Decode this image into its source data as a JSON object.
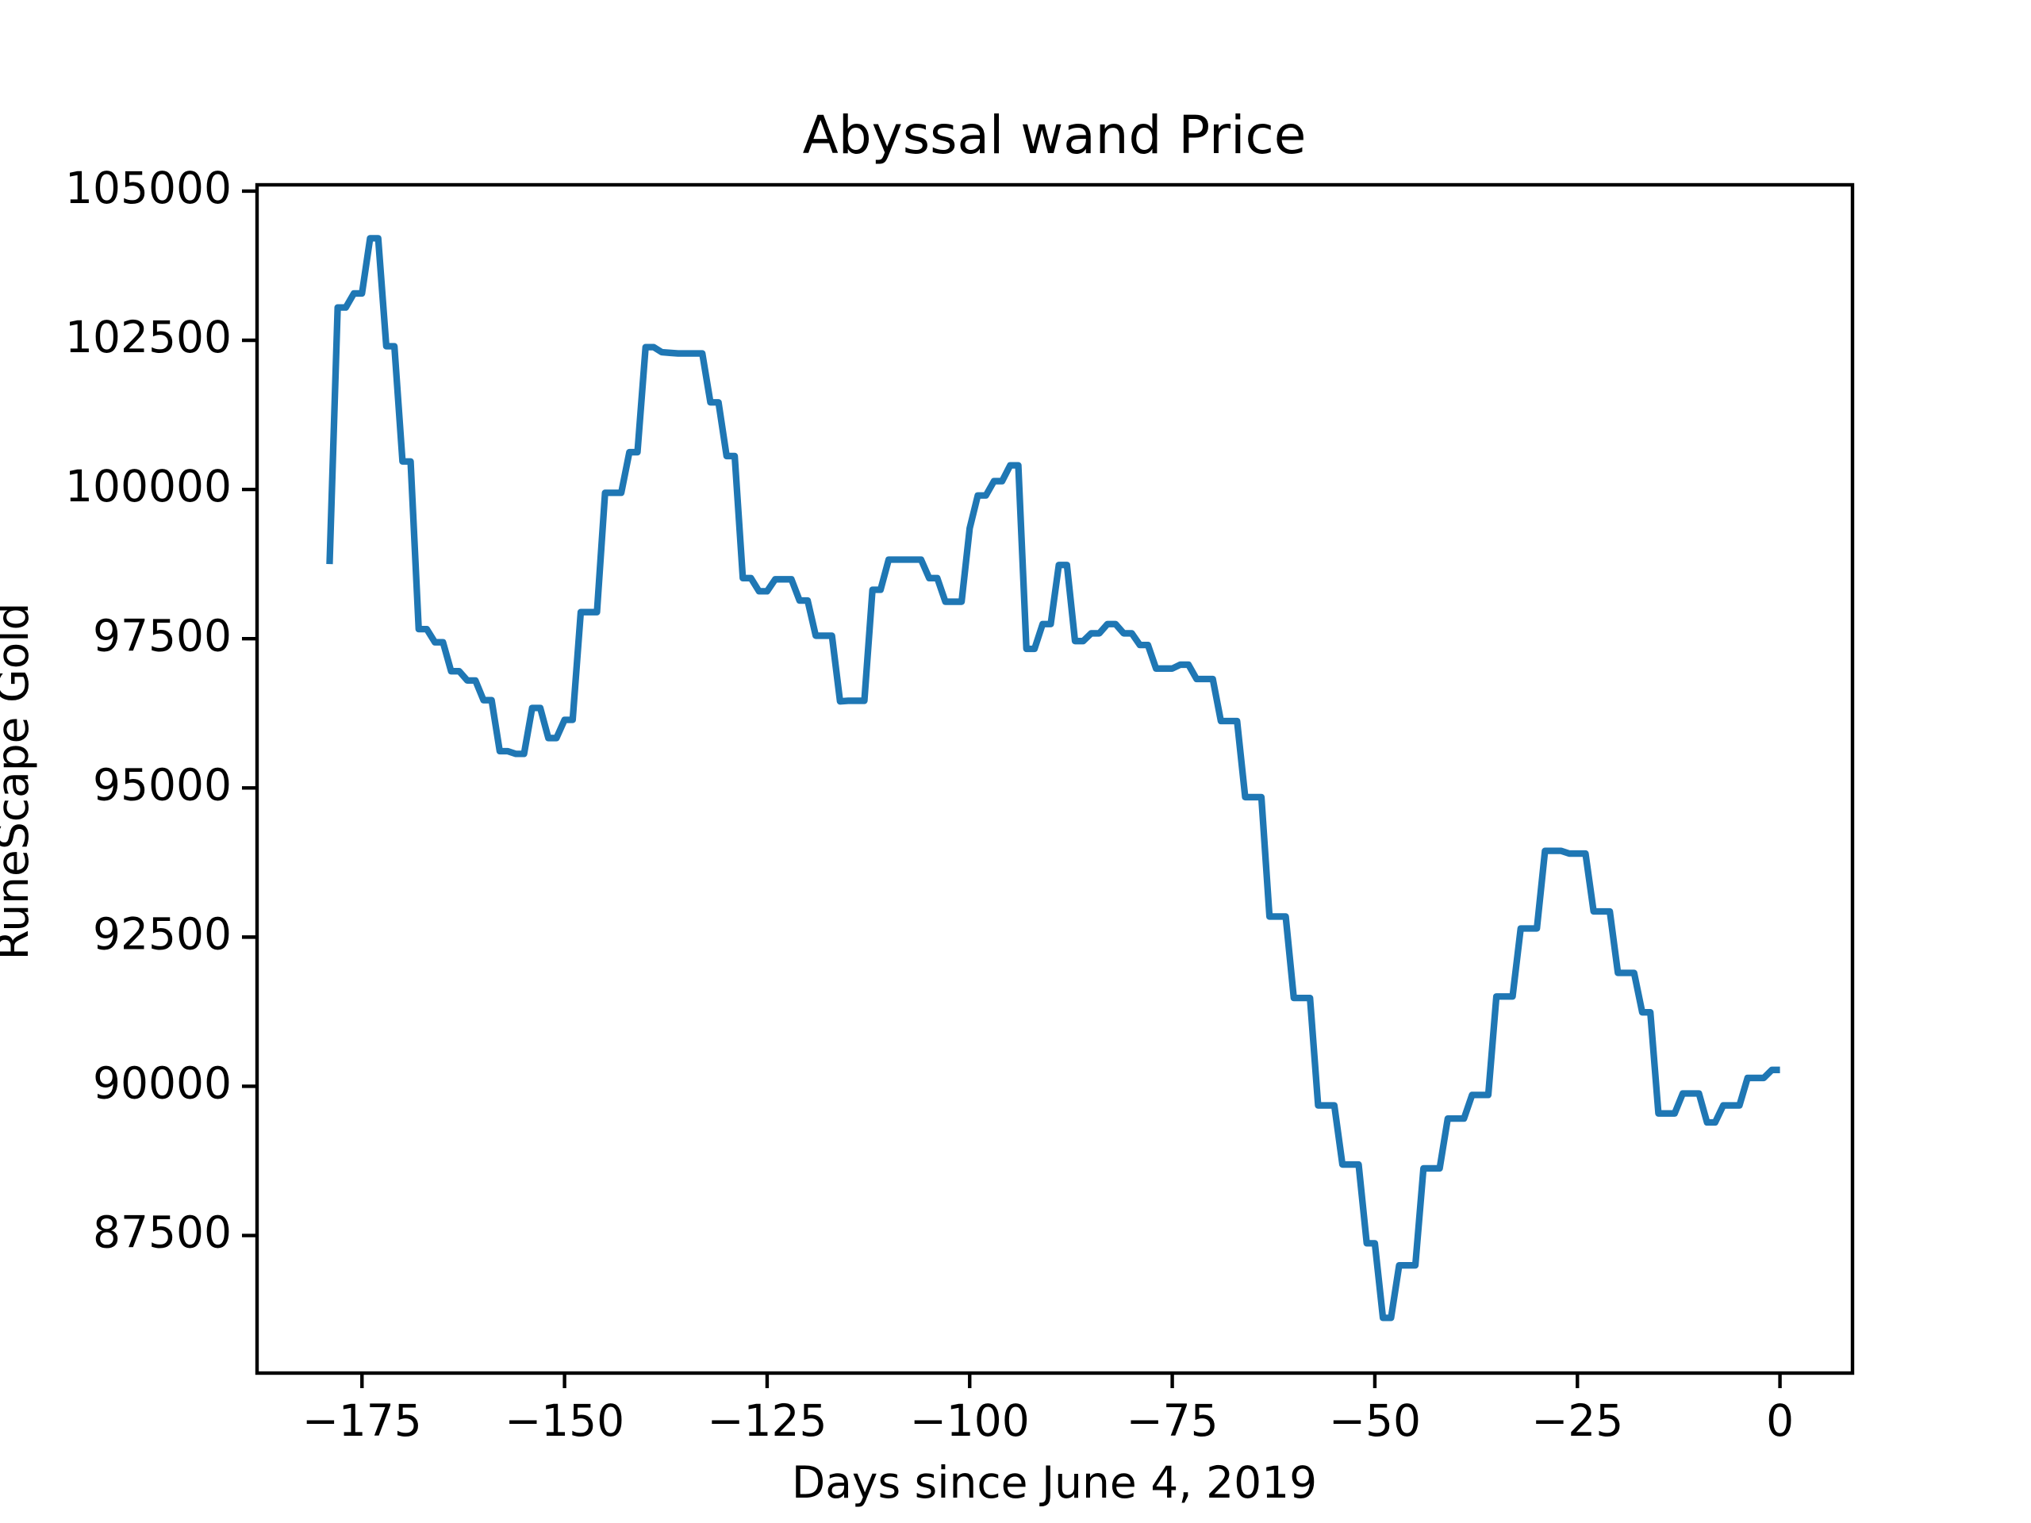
{
  "chart_data": {
    "type": "line",
    "title": "Abyssal wand Price",
    "x_label": "Days since June 4, 2019",
    "y_label": "RuneScape Gold",
    "grid": false,
    "xlim": [
      -187.95,
      8.95
    ],
    "ylim": [
      85195,
      105105
    ],
    "xticks": [
      {
        "value": -175,
        "label": "−175"
      },
      {
        "value": -150,
        "label": "−150"
      },
      {
        "value": -125,
        "label": "−125"
      },
      {
        "value": -100,
        "label": "−100"
      },
      {
        "value": -75,
        "label": "−75"
      },
      {
        "value": -50,
        "label": "−50"
      },
      {
        "value": -25,
        "label": "−25"
      },
      0
    ],
    "yticks": [
      87500,
      90000,
      92500,
      95000,
      97500,
      100000,
      102500,
      105000
    ],
    "x": [
      -179,
      -178,
      -177,
      -176,
      -175,
      -174,
      -173,
      -172,
      -171,
      -170,
      -169,
      -168,
      -167,
      -166,
      -165,
      -164,
      -163,
      -162,
      -161,
      -160,
      -159,
      -158,
      -157,
      -156,
      -155,
      -154,
      -153,
      -152,
      -151,
      -150,
      -149,
      -148,
      -147,
      -146,
      -145,
      -144,
      -143,
      -142,
      -141,
      -140,
      -139,
      -138,
      -137,
      -136,
      -135,
      -134,
      -133,
      -132,
      -131,
      -130,
      -129,
      -128,
      -127,
      -126,
      -125,
      -124,
      -123,
      -122,
      -121,
      -120,
      -119,
      -118,
      -117,
      -116,
      -115,
      -114,
      -113,
      -112,
      -111,
      -110,
      -109,
      -108,
      -107,
      -106,
      -105,
      -104,
      -103,
      -102,
      -101,
      -100,
      -99,
      -98,
      -97,
      -96,
      -95,
      -94,
      -93,
      -92,
      -91,
      -90,
      -89,
      -88,
      -87,
      -86,
      -85,
      -84,
      -83,
      -82,
      -81,
      -80,
      -79,
      -78,
      -77,
      -76,
      -75,
      -74,
      -73,
      -72,
      -71,
      -70,
      -69,
      -68,
      -67,
      -66,
      -65,
      -64,
      -63,
      -62,
      -61,
      -60,
      -59,
      -58,
      -57,
      -56,
      -55,
      -54,
      -53,
      -52,
      -51,
      -50,
      -49,
      -48,
      -47,
      -46,
      -45,
      -44,
      -43,
      -42,
      -41,
      -40,
      -39,
      -38,
      -37,
      -36,
      -35,
      -34,
      -33,
      -32,
      -31,
      -30,
      -29,
      -28,
      -27,
      -26,
      -25,
      -24,
      -23,
      -22,
      -21,
      -20,
      -19,
      -18,
      -17,
      -16,
      -15,
      -14,
      -13,
      -12,
      -11,
      -10,
      -9,
      -8,
      -7,
      -6,
      -5,
      -4,
      -3,
      -2,
      -1,
      0
    ],
    "series": [
      {
        "color": "#1f77b4",
        "values": [
          98750,
          103050,
          103050,
          103285,
          103285,
          104210,
          104210,
          102400,
          102400,
          100470,
          100470,
          97660,
          97660,
          97440,
          97440,
          96955,
          96955,
          96800,
          96800,
          96470,
          96470,
          95615,
          95615,
          95570,
          95570,
          96340,
          96340,
          95835,
          95835,
          96140,
          96140,
          97945,
          97945,
          97945,
          99945,
          99945,
          99945,
          100625,
          100625,
          102385,
          102385,
          102300,
          102290,
          102280,
          102280,
          102280,
          102280,
          101460,
          101460,
          100560,
          100560,
          98515,
          98515,
          98295,
          98295,
          98495,
          98495,
          98495,
          98140,
          98140,
          97550,
          97550,
          97550,
          96450,
          96460,
          96460,
          96460,
          98320,
          98320,
          98825,
          98825,
          98825,
          98825,
          98825,
          98515,
          98515,
          98120,
          98120,
          98120,
          99350,
          99900,
          99900,
          100140,
          100140,
          100405,
          100405,
          97330,
          97330,
          97745,
          97745,
          98735,
          98735,
          97460,
          97460,
          97590,
          97590,
          97745,
          97745,
          97590,
          97590,
          97395,
          97395,
          97000,
          97000,
          97000,
          97065,
          97065,
          96825,
          96825,
          96825,
          96120,
          96120,
          96120,
          94845,
          94845,
          94845,
          92845,
          92845,
          92845,
          91480,
          91480,
          91480,
          89680,
          89680,
          89680,
          88690,
          88690,
          88690,
          87370,
          87370,
          86120,
          86120,
          87000,
          87000,
          87000,
          88625,
          88625,
          88625,
          89460,
          89460,
          89460,
          89855,
          89855,
          89855,
          91505,
          91505,
          91505,
          92645,
          92645,
          92645,
          93945,
          93945,
          93945,
          93900,
          93900,
          93900,
          92930,
          92930,
          92930,
          91900,
          91900,
          91900,
          91240,
          91240,
          89545,
          89545,
          89545,
          89880,
          89880,
          89880,
          89395,
          89395,
          89680,
          89680,
          89680,
          90140,
          90140,
          90140,
          90275,
          90275
        ]
      }
    ]
  }
}
